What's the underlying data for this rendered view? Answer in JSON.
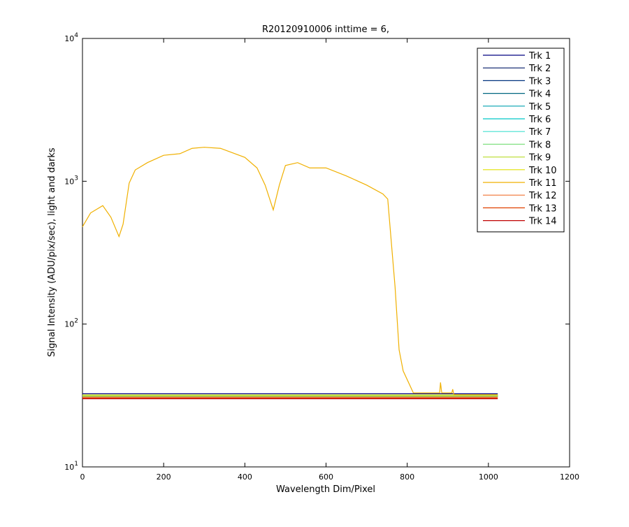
{
  "chart_data": {
    "type": "line",
    "title": "R20120910006 inttime = 6,",
    "x_label": "Wavelength Dim/Pixel",
    "y_label": "Signal Intensity (ADU/pix/sec), light and darks",
    "xlim": [
      0,
      1200
    ],
    "xticks": [
      0,
      200,
      400,
      600,
      800,
      1000,
      1200
    ],
    "ylim": [
      10,
      10000
    ],
    "log_y": true,
    "yticks": [
      {
        "value": 10,
        "label": "10^1"
      },
      {
        "value": 100,
        "label": "10^2"
      },
      {
        "value": 1000,
        "label": "10^3"
      },
      {
        "value": 10000,
        "label": "10^4"
      }
    ],
    "legend": "upper right",
    "series": [
      {
        "name": "Trk 1",
        "color": "#000080",
        "x": [
          0,
          1023
        ],
        "values": [
          32.5,
          32.5
        ]
      },
      {
        "name": "Trk 2",
        "color": "#001a66",
        "x": [
          0,
          1023
        ],
        "values": [
          31,
          31
        ]
      },
      {
        "name": "Trk 3",
        "color": "#00337f",
        "x": [
          0,
          1023
        ],
        "values": [
          31.5,
          31.5
        ]
      },
      {
        "name": "Trk 4",
        "color": "#006680",
        "x": [
          0,
          1023
        ],
        "values": [
          31.8,
          31.8
        ]
      },
      {
        "name": "Trk 5",
        "color": "#00a0b0",
        "x": [
          0,
          1023
        ],
        "values": [
          31.6,
          31.6
        ]
      },
      {
        "name": "Trk 6",
        "color": "#00c8c8",
        "x": [
          0,
          1023
        ],
        "values": [
          31.4,
          31.4
        ]
      },
      {
        "name": "Trk 7",
        "color": "#40e0d0",
        "x": [
          0,
          1023
        ],
        "values": [
          31.2,
          31.2
        ]
      },
      {
        "name": "Trk 8",
        "color": "#80e080",
        "x": [
          0,
          1023
        ],
        "values": [
          31.7,
          31.7
        ]
      },
      {
        "name": "Trk 9",
        "color": "#c0e040",
        "x": [
          0,
          1023
        ],
        "values": [
          31.3,
          31.3
        ]
      },
      {
        "name": "Trk 10",
        "color": "#e0e000",
        "x": [
          0,
          1023
        ],
        "values": [
          31.9,
          31.9
        ]
      },
      {
        "name": "Trk 11",
        "color": "#f0b000",
        "x": [
          0,
          20,
          50,
          70,
          90,
          100,
          115,
          130,
          160,
          200,
          240,
          270,
          300,
          340,
          400,
          430,
          450,
          470,
          485,
          500,
          530,
          560,
          600,
          650,
          700,
          740,
          752,
          760,
          770,
          780,
          790,
          815,
          880,
          882,
          885,
          910,
          912,
          915,
          1023
        ],
        "values": [
          480,
          600,
          675,
          560,
          410,
          500,
          970,
          1200,
          1350,
          1520,
          1560,
          1700,
          1730,
          1700,
          1470,
          1240,
          940,
          630,
          940,
          1290,
          1350,
          1240,
          1240,
          1090,
          940,
          815,
          750,
          400,
          183,
          66,
          47,
          33,
          33,
          39,
          33,
          33,
          35,
          32,
          32
        ]
      },
      {
        "name": "Trk 12",
        "color": "#f07030",
        "x": [
          0,
          1023
        ],
        "values": [
          30.8,
          30.8
        ]
      },
      {
        "name": "Trk 13",
        "color": "#e04000",
        "x": [
          0,
          1023
        ],
        "values": [
          30.4,
          30.4
        ]
      },
      {
        "name": "Trk 14",
        "color": "#c00000",
        "x": [
          0,
          1023
        ],
        "values": [
          30,
          30
        ]
      }
    ]
  }
}
